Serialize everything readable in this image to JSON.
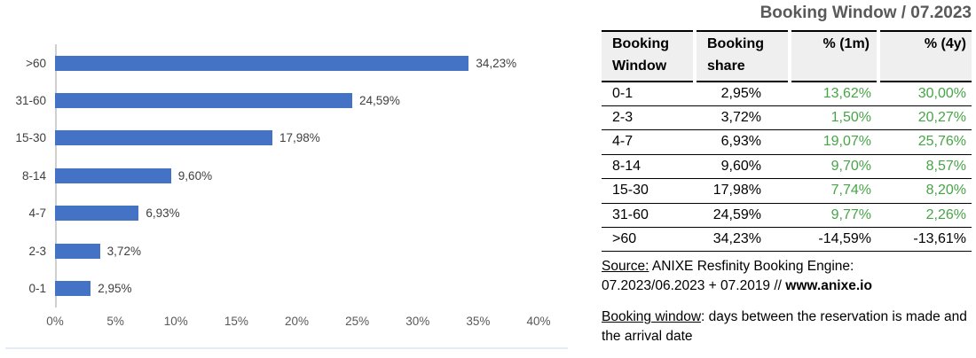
{
  "title": "Booking Window / 07.2023",
  "chart_data": {
    "type": "bar",
    "orientation": "horizontal",
    "categories": [
      ">60",
      "31-60",
      "15-30",
      "8-14",
      "4-7",
      "2-3",
      "0-1"
    ],
    "values": [
      34.23,
      24.59,
      17.98,
      9.6,
      6.93,
      3.72,
      2.95
    ],
    "value_labels": [
      "34,23%",
      "24,59%",
      "17,98%",
      "9,60%",
      "6,93%",
      "3,72%",
      "2,95%"
    ],
    "title": "",
    "xlabel": "",
    "ylabel": "",
    "xlim": [
      0,
      40
    ],
    "x_ticks": [
      0,
      5,
      10,
      15,
      20,
      25,
      30,
      35,
      40
    ],
    "x_tick_labels": [
      "0%",
      "5%",
      "10%",
      "15%",
      "20%",
      "25%",
      "30%",
      "35%",
      "40%"
    ],
    "bar_color": "#4472C4",
    "grid": false,
    "legend": "none"
  },
  "table": {
    "columns": [
      "Booking\nWindow",
      "Booking\nshare",
      "% (1m)",
      "% (4y)"
    ],
    "rows": [
      {
        "window": "0-1",
        "share": "2,95%",
        "m1": "13,62%",
        "y4": "30,00%"
      },
      {
        "window": "2-3",
        "share": "3,72%",
        "m1": "1,50%",
        "y4": "20,27%"
      },
      {
        "window": "4-7",
        "share": "6,93%",
        "m1": "19,07%",
        "y4": "25,76%"
      },
      {
        "window": "8-14",
        "share": "9,60%",
        "m1": "9,70%",
        "y4": "8,57%"
      },
      {
        "window": "15-30",
        "share": "17,98%",
        "m1": "7,74%",
        "y4": "8,20%"
      },
      {
        "window": "31-60",
        "share": "24,59%",
        "m1": "9,77%",
        "y4": "2,26%"
      },
      {
        "window": ">60",
        "share": "34,23%",
        "m1": "-14,59%",
        "y4": "-13,61%"
      }
    ],
    "positive_color": "#47A447",
    "negative_color": "#000000"
  },
  "notes": {
    "source_label": "Source:",
    "source_line1_rest": " ANIXE Resfinity Booking Engine:",
    "source_line2": "07.2023/06.2023 + 07.2019 // ",
    "source_site": "www.anixe.io",
    "definition_label": "Booking window",
    "definition_rest": ": days between the reservation is made and the arrival date"
  },
  "colors": {
    "bar_blue": "#4472C4",
    "title_gray": "#595959",
    "header_bg": "#EFEFEF"
  }
}
